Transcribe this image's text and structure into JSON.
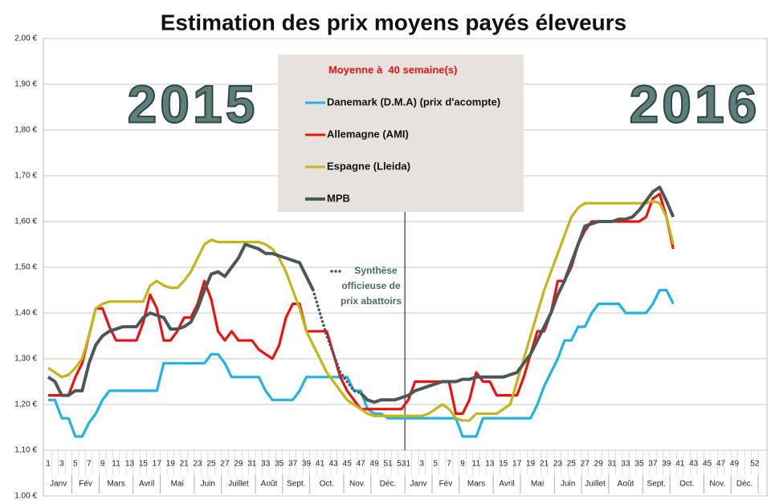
{
  "chart_data": {
    "type": "line",
    "title": "Estimation des prix moyens payés éleveurs",
    "legend_title": "Moyenne à  40 semaine(s)",
    "year_labels": [
      "2015",
      "2016"
    ],
    "ylim": [
      1.0,
      2.0
    ],
    "yticks": [
      {
        "value": 1.0,
        "label": "1.00 €"
      },
      {
        "value": 1.1,
        "label": "1,10 €"
      },
      {
        "value": 1.2,
        "label": "1,20 €"
      },
      {
        "value": 1.3,
        "label": "1,30 €"
      },
      {
        "value": 1.4,
        "label": "1,40 €"
      },
      {
        "value": 1.5,
        "label": "1,50 €"
      },
      {
        "value": 1.6,
        "label": "1,60 €"
      },
      {
        "value": 1.7,
        "label": "1,70 €"
      },
      {
        "value": 1.8,
        "label": "1,80 €"
      },
      {
        "value": 1.9,
        "label": "1,90 €"
      },
      {
        "value": 2.0,
        "label": "2,00 €"
      }
    ],
    "grid": true,
    "categories": [
      "1",
      null,
      "3",
      null,
      "5",
      null,
      "7",
      null,
      "9",
      null,
      "11",
      null,
      "13",
      null,
      "15",
      null,
      "17",
      null,
      "19",
      null,
      "21",
      null,
      "23",
      null,
      "25",
      null,
      "27",
      null,
      "29",
      null,
      "31",
      null,
      "33",
      null,
      "35",
      null,
      "37",
      null,
      "39",
      null,
      "41",
      null,
      "43",
      null,
      "45",
      null,
      "47",
      null,
      "49",
      null,
      "51",
      null,
      "53",
      "1",
      null,
      "3",
      null,
      "5",
      null,
      "7",
      null,
      "9",
      null,
      "11",
      null,
      "13",
      null,
      "15",
      null,
      "17",
      null,
      "19",
      null,
      "21",
      null,
      "23",
      null,
      "25",
      null,
      "27",
      null,
      "29",
      null,
      "31",
      null,
      "33",
      null,
      "35",
      null,
      "37",
      null,
      "39",
      null,
      "41",
      null,
      "43",
      null,
      "45",
      null,
      "47",
      null,
      "49",
      null,
      null,
      "52"
    ],
    "months": [
      {
        "label": "Janv",
        "from": 0,
        "to": 3
      },
      {
        "label": "Fév",
        "from": 4,
        "to": 7
      },
      {
        "label": "Mars",
        "from": 8,
        "to": 12
      },
      {
        "label": "Avril",
        "from": 13,
        "to": 16
      },
      {
        "label": "Mai",
        "from": 17,
        "to": 21
      },
      {
        "label": "Juin",
        "from": 22,
        "to": 25
      },
      {
        "label": "Juillet",
        "from": 26,
        "to": 30
      },
      {
        "label": "Août",
        "from": 31,
        "to": 34
      },
      {
        "label": "Sept.",
        "from": 35,
        "to": 38
      },
      {
        "label": "Oct.",
        "from": 39,
        "to": 43
      },
      {
        "label": "Nov.",
        "from": 44,
        "to": 47
      },
      {
        "label": "Déc.",
        "from": 48,
        "to": 52
      },
      {
        "label": "Janv",
        "from": 53,
        "to": 56
      },
      {
        "label": "Fév",
        "from": 57,
        "to": 60
      },
      {
        "label": "Mars",
        "from": 61,
        "to": 65
      },
      {
        "label": "Avril",
        "from": 66,
        "to": 69
      },
      {
        "label": "Mai",
        "from": 70,
        "to": 74
      },
      {
        "label": "Juin",
        "from": 75,
        "to": 78
      },
      {
        "label": "Juillet",
        "from": 79,
        "to": 82
      },
      {
        "label": "Août",
        "from": 83,
        "to": 87
      },
      {
        "label": "Sept.",
        "from": 88,
        "to": 91
      },
      {
        "label": "Oct.",
        "from": 92,
        "to": 96
      },
      {
        "label": "Nov.",
        "from": 97,
        "to": 100
      },
      {
        "label": "Déc.",
        "from": 101,
        "to": 104
      }
    ],
    "series": [
      {
        "name": "Danemark (D.M.A) (prix d'acompte)",
        "color": "#1fb4e6",
        "values": [
          1.21,
          1.21,
          1.17,
          1.17,
          1.13,
          1.13,
          1.16,
          1.18,
          1.21,
          1.23,
          1.23,
          1.23,
          1.23,
          1.23,
          1.23,
          1.23,
          1.23,
          1.29,
          1.29,
          1.29,
          1.29,
          1.29,
          1.29,
          1.29,
          1.31,
          1.31,
          1.29,
          1.26,
          1.26,
          1.26,
          1.26,
          1.26,
          1.23,
          1.21,
          1.21,
          1.21,
          1.21,
          1.23,
          1.26,
          1.26,
          1.26,
          1.26,
          1.26,
          1.26,
          1.26,
          1.23,
          1.23,
          1.19,
          1.18,
          1.18,
          1.17,
          1.17,
          1.17,
          1.17,
          1.17,
          1.17,
          1.17,
          1.17,
          1.17,
          1.17,
          1.17,
          1.13,
          1.13,
          1.13,
          1.17,
          1.17,
          1.17,
          1.17,
          1.17,
          1.17,
          1.17,
          1.17,
          1.2,
          1.24,
          1.27,
          1.3,
          1.34,
          1.34,
          1.37,
          1.37,
          1.4,
          1.42,
          1.42,
          1.42,
          1.42,
          1.4,
          1.4,
          1.4,
          1.4,
          1.42,
          1.45,
          1.45,
          1.42,
          null,
          null,
          null,
          null,
          null,
          null,
          null,
          null,
          null,
          null,
          null,
          null
        ]
      },
      {
        "name": "Allemagne (AMI)",
        "color": "#ee1111",
        "values": [
          1.22,
          1.22,
          1.22,
          1.22,
          1.26,
          1.29,
          1.35,
          1.41,
          1.41,
          1.37,
          1.34,
          1.34,
          1.34,
          1.34,
          1.38,
          1.44,
          1.41,
          1.34,
          1.34,
          1.36,
          1.39,
          1.39,
          1.42,
          1.47,
          1.43,
          1.36,
          1.34,
          1.36,
          1.34,
          1.34,
          1.34,
          1.32,
          1.31,
          1.3,
          1.33,
          1.39,
          1.42,
          1.42,
          1.36,
          1.36,
          1.36,
          1.36,
          1.31,
          1.26,
          1.23,
          1.21,
          1.19,
          1.19,
          1.19,
          1.19,
          1.19,
          1.19,
          1.19,
          1.21,
          1.25,
          1.25,
          1.25,
          1.25,
          1.25,
          1.25,
          1.18,
          1.18,
          1.21,
          1.27,
          1.25,
          1.25,
          1.22,
          1.22,
          1.22,
          1.22,
          1.26,
          1.31,
          1.36,
          1.36,
          1.4,
          1.47,
          1.47,
          1.5,
          1.55,
          1.58,
          1.6,
          1.6,
          1.6,
          1.6,
          1.6,
          1.6,
          1.6,
          1.6,
          1.61,
          1.65,
          1.66,
          1.61,
          1.54,
          null,
          null,
          null,
          null,
          null,
          null,
          null,
          null,
          null,
          null,
          null,
          null
        ]
      },
      {
        "name": "Espagne (Lleida)",
        "color": "#c9b418",
        "values": [
          1.28,
          1.27,
          1.26,
          1.265,
          1.28,
          1.3,
          1.35,
          1.41,
          1.42,
          1.425,
          1.425,
          1.425,
          1.425,
          1.425,
          1.425,
          1.46,
          1.47,
          1.46,
          1.455,
          1.455,
          1.47,
          1.49,
          1.52,
          1.55,
          1.56,
          1.555,
          1.555,
          1.555,
          1.555,
          1.555,
          1.555,
          1.555,
          1.55,
          1.54,
          1.52,
          1.49,
          1.45,
          1.41,
          1.36,
          1.33,
          1.3,
          1.27,
          1.25,
          1.23,
          1.21,
          1.2,
          1.19,
          1.18,
          1.175,
          1.175,
          1.175,
          1.175,
          1.175,
          1.175,
          1.175,
          1.175,
          1.18,
          1.19,
          1.2,
          1.19,
          1.17,
          1.165,
          1.165,
          1.18,
          1.18,
          1.18,
          1.18,
          1.19,
          1.2,
          1.25,
          1.3,
          1.35,
          1.4,
          1.45,
          1.49,
          1.53,
          1.57,
          1.61,
          1.63,
          1.64,
          1.64,
          1.64,
          1.64,
          1.64,
          1.64,
          1.64,
          1.64,
          1.64,
          1.64,
          1.645,
          1.64,
          1.61,
          1.55,
          null,
          null,
          null,
          null,
          null,
          null,
          null,
          null,
          null,
          null,
          null,
          null
        ]
      },
      {
        "name": "MPB",
        "color": "#4a5858",
        "values": [
          1.26,
          1.25,
          1.22,
          1.22,
          1.23,
          1.23,
          1.29,
          1.33,
          1.35,
          1.36,
          1.365,
          1.37,
          1.37,
          1.37,
          1.39,
          1.4,
          1.395,
          1.39,
          1.365,
          1.365,
          1.37,
          1.38,
          1.41,
          1.45,
          1.485,
          1.49,
          1.48,
          1.5,
          1.52,
          1.55,
          1.545,
          1.54,
          1.53,
          1.53,
          1.525,
          1.52,
          1.515,
          1.51,
          1.48,
          1.45,
          null,
          null,
          null,
          null,
          null,
          null,
          1.225,
          1.21,
          1.205,
          1.21,
          1.21,
          1.21,
          1.215,
          1.22,
          1.23,
          1.235,
          1.24,
          1.245,
          1.25,
          1.25,
          1.25,
          1.255,
          1.255,
          1.26,
          1.26,
          1.26,
          1.26,
          1.26,
          1.265,
          1.27,
          1.29,
          1.31,
          1.34,
          1.37,
          1.4,
          1.44,
          1.47,
          1.51,
          1.55,
          1.59,
          1.595,
          1.6,
          1.6,
          1.6,
          1.605,
          1.605,
          1.61,
          1.625,
          1.645,
          1.665,
          1.675,
          1.645,
          1.61,
          null,
          null,
          null,
          null,
          null,
          null,
          null,
          null,
          null,
          null,
          null,
          null
        ]
      }
    ],
    "synthese": {
      "label": [
        "Synthèse",
        "officieuse de",
        "prix abattoirs"
      ],
      "color": "#4a5858",
      "values": [
        null,
        null,
        null,
        null,
        null,
        null,
        null,
        null,
        null,
        null,
        null,
        null,
        null,
        null,
        null,
        null,
        null,
        null,
        null,
        null,
        null,
        null,
        null,
        null,
        null,
        null,
        null,
        null,
        null,
        null,
        null,
        null,
        null,
        null,
        null,
        null,
        null,
        null,
        null,
        1.45,
        1.4,
        1.35,
        1.31,
        1.27,
        1.25,
        1.23,
        1.225,
        null,
        null,
        null,
        null,
        null,
        null,
        null,
        null,
        null,
        null,
        null,
        null,
        null,
        null,
        null,
        null,
        null,
        null,
        null,
        null,
        null,
        null,
        null,
        null,
        null,
        null,
        null,
        null,
        null,
        null,
        null,
        null,
        null,
        null,
        null,
        null,
        null,
        null,
        null,
        null,
        null,
        null,
        null,
        null,
        null,
        null,
        null,
        null,
        null,
        null,
        null,
        null,
        null,
        null,
        null,
        null,
        null,
        null
      ]
    }
  }
}
